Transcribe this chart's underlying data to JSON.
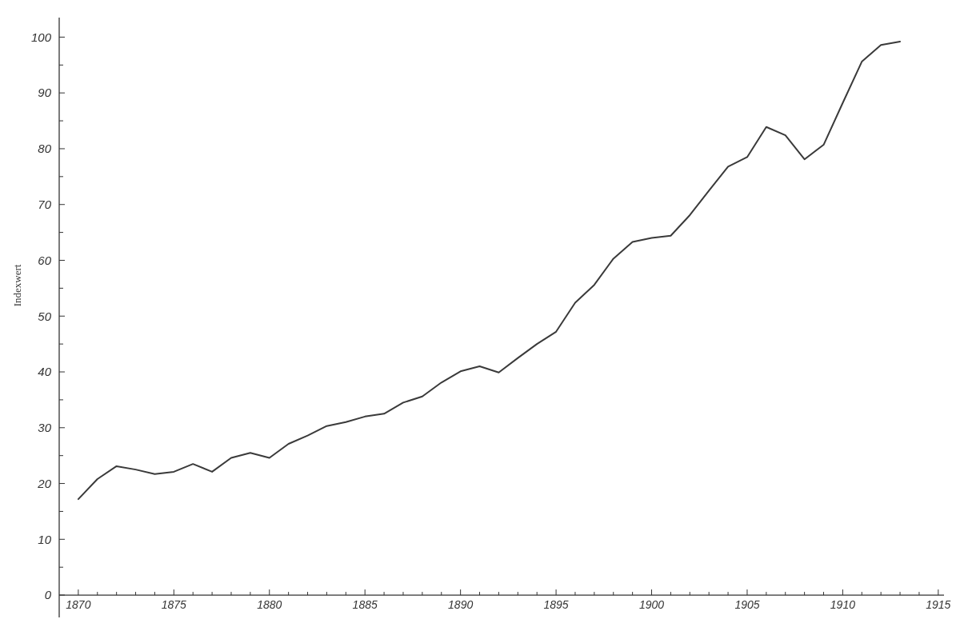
{
  "chart_data": {
    "type": "line",
    "ylabel": "Indexwert",
    "x": [
      1870,
      1871,
      1872,
      1873,
      1874,
      1875,
      1876,
      1877,
      1878,
      1879,
      1880,
      1881,
      1882,
      1883,
      1884,
      1885,
      1886,
      1887,
      1888,
      1889,
      1890,
      1891,
      1892,
      1893,
      1894,
      1895,
      1896,
      1897,
      1898,
      1899,
      1900,
      1901,
      1902,
      1903,
      1904,
      1905,
      1906,
      1907,
      1908,
      1909,
      1910,
      1911,
      1912,
      1913
    ],
    "series": [
      {
        "color": "#3a3a3a",
        "values": [
          17.2,
          20.8,
          23.1,
          22.5,
          21.7,
          22.1,
          23.5,
          22.1,
          24.6,
          25.5,
          24.6,
          27.1,
          28.6,
          30.3,
          31.0,
          32.0,
          32.5,
          34.5,
          35.6,
          38.1,
          40.1,
          41.0,
          39.9,
          42.5,
          45.0,
          47.2,
          52.4,
          55.6,
          60.3,
          63.3,
          64.0,
          64.4,
          68.1,
          72.5,
          76.8,
          78.5,
          83.9,
          82.4,
          78.1,
          80.7,
          88.2,
          95.6,
          98.6,
          99.2
        ]
      }
    ],
    "xlim": [
      1869,
      1915.3
    ],
    "ylim": [
      -4,
      103.5
    ],
    "xticks": [
      1870,
      {
        "value": 1871,
        "label": null
      },
      {
        "value": 1872,
        "label": null
      },
      {
        "value": 1873,
        "label": null
      },
      {
        "value": 1874,
        "label": null
      },
      1875,
      {
        "value": 1876,
        "label": null
      },
      {
        "value": 1877,
        "label": null
      },
      {
        "value": 1878,
        "label": null
      },
      {
        "value": 1879,
        "label": null
      },
      1880,
      {
        "value": 1881,
        "label": null
      },
      {
        "value": 1882,
        "label": null
      },
      {
        "value": 1883,
        "label": null
      },
      {
        "value": 1884,
        "label": null
      },
      1885,
      {
        "value": 1886,
        "label": null
      },
      {
        "value": 1887,
        "label": null
      },
      {
        "value": 1888,
        "label": null
      },
      {
        "value": 1889,
        "label": null
      },
      1890,
      {
        "value": 1891,
        "label": null
      },
      {
        "value": 1892,
        "label": null
      },
      {
        "value": 1893,
        "label": null
      },
      {
        "value": 1894,
        "label": null
      },
      1895,
      {
        "value": 1896,
        "label": null
      },
      {
        "value": 1897,
        "label": null
      },
      {
        "value": 1898,
        "label": null
      },
      {
        "value": 1899,
        "label": null
      },
      1900,
      {
        "value": 1901,
        "label": null
      },
      {
        "value": 1902,
        "label": null
      },
      {
        "value": 1903,
        "label": null
      },
      {
        "value": 1904,
        "label": null
      },
      1905,
      {
        "value": 1906,
        "label": null
      },
      {
        "value": 1907,
        "label": null
      },
      {
        "value": 1908,
        "label": null
      },
      {
        "value": 1909,
        "label": null
      },
      1910,
      {
        "value": 1911,
        "label": null
      },
      {
        "value": 1912,
        "label": null
      },
      {
        "value": 1913,
        "label": null
      },
      {
        "value": 1914,
        "label": null
      },
      1915
    ],
    "yticks": [
      0,
      {
        "value": 5,
        "label": null
      },
      10,
      {
        "value": 15,
        "label": null
      },
      20,
      {
        "value": 25,
        "label": null
      },
      30,
      {
        "value": 35,
        "label": null
      },
      40,
      {
        "value": 45,
        "label": null
      },
      50,
      {
        "value": 55,
        "label": null
      },
      60,
      {
        "value": 65,
        "label": null
      },
      70,
      {
        "value": 75,
        "label": null
      },
      80,
      {
        "value": 85,
        "label": null
      },
      90,
      {
        "value": 95,
        "label": null
      },
      100
    ],
    "marker": "none",
    "line_style": "solid"
  }
}
